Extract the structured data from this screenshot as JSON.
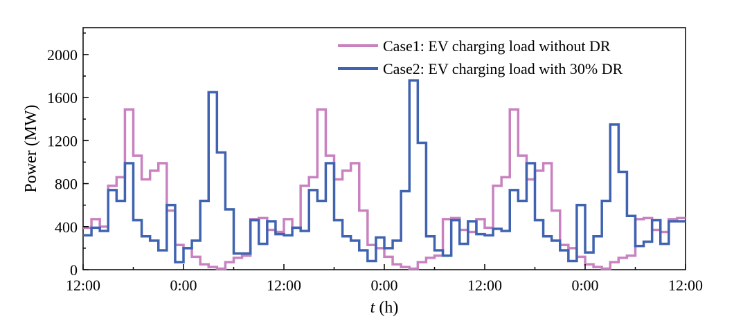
{
  "chart_data": {
    "type": "line",
    "step": true,
    "xlabel_italic": "t",
    "xlabel_unit": " (h)",
    "ylabel": "Power (MW)",
    "ylim": [
      0,
      2250
    ],
    "yticks": [
      0,
      400,
      800,
      1200,
      1600,
      2000
    ],
    "ytick_labels": [
      "0",
      "400",
      "800",
      "1200",
      "1600",
      "2000"
    ],
    "xlim": [
      0,
      72
    ],
    "xticks": [
      0,
      12,
      24,
      36,
      48,
      60,
      72
    ],
    "xtick_labels": [
      "12:00",
      "0:00",
      "12:00",
      "0:00",
      "12:00",
      "0:00",
      "12:00"
    ],
    "grid": false,
    "legend_position": "top-right",
    "series": [
      {
        "name": "Case1: EV charging load without DR",
        "color": "#c882c0",
        "values": [
          390,
          470,
          400,
          780,
          860,
          1490,
          1060,
          840,
          920,
          990,
          550,
          230,
          200,
          120,
          50,
          25,
          10,
          70,
          110,
          130,
          470,
          480,
          370,
          350,
          470,
          390,
          780,
          860,
          1490,
          1060,
          840,
          920,
          990,
          550,
          230,
          200,
          120,
          50,
          25,
          10,
          70,
          110,
          130,
          470,
          480,
          370,
          350,
          470,
          390,
          780,
          860,
          1490,
          1060,
          840,
          920,
          990,
          550,
          230,
          200,
          120,
          50,
          25,
          10,
          70,
          110,
          130,
          470,
          480,
          370,
          350,
          470,
          480
        ]
      },
      {
        "name": "Case2: EV charging load with 30% DR",
        "color": "#3f63b0",
        "values": [
          320,
          390,
          360,
          740,
          640,
          990,
          460,
          310,
          270,
          180,
          600,
          70,
          200,
          270,
          640,
          1650,
          1090,
          560,
          150,
          150,
          460,
          240,
          450,
          330,
          320,
          390,
          360,
          740,
          640,
          990,
          460,
          310,
          270,
          180,
          80,
          300,
          200,
          270,
          730,
          1760,
          1180,
          310,
          180,
          130,
          460,
          240,
          450,
          330,
          320,
          380,
          360,
          740,
          640,
          990,
          460,
          310,
          270,
          180,
          80,
          600,
          160,
          310,
          640,
          1350,
          910,
          500,
          220,
          260,
          460,
          240,
          450,
          450
        ]
      }
    ]
  }
}
